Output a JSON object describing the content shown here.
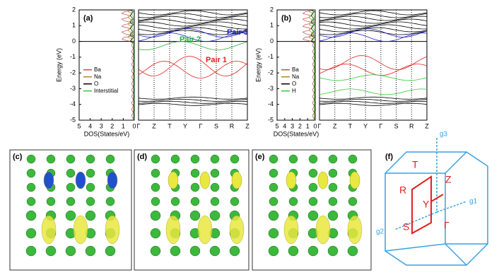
{
  "panels": [
    {
      "label": "(a)",
      "y_axis_label": "Energy (eV)",
      "yticks": [
        2,
        1,
        0,
        -1,
        -2,
        -3,
        -4,
        -5
      ],
      "ylim": [
        2,
        -5
      ],
      "x_axis_label": "DOS(States/eV)",
      "dos_ticks": [
        5,
        4,
        3,
        2,
        1,
        0
      ],
      "dos_lim": [
        5,
        0
      ],
      "kpoints": [
        "Γ",
        "Z",
        "T",
        "Y",
        "Γ",
        "S",
        "R",
        "Z"
      ],
      "legend": [
        {
          "name": "Ba",
          "color": "#c0504d"
        },
        {
          "name": "Na",
          "color": "#a8862a"
        },
        {
          "name": "O",
          "color": "#000000"
        },
        {
          "name": "Interstitial",
          "color": "#33cc33"
        }
      ],
      "annotations": [
        {
          "text": "Pair 1",
          "color": "#e02020"
        },
        {
          "text": "Pair 2",
          "color": "#20b040"
        },
        {
          "text": "Pair 3",
          "color": "#2020c0"
        }
      ]
    },
    {
      "label": "(b)",
      "y_axis_label": "Energy (eV)",
      "yticks": [
        2,
        1,
        0,
        -1,
        -2,
        -3,
        -4,
        -5
      ],
      "ylim": [
        2,
        -5
      ],
      "x_axis_label": "DOS(States/eV)",
      "dos_ticks": [
        5,
        4,
        3,
        2,
        1,
        0
      ],
      "dos_lim": [
        5,
        0
      ],
      "kpoints": [
        "Γ",
        "Z",
        "T",
        "Y",
        "Γ",
        "S",
        "R",
        "Z"
      ],
      "legend": [
        {
          "name": "Ba",
          "color": "#c0504d"
        },
        {
          "name": "Na",
          "color": "#a8862a"
        },
        {
          "name": "O",
          "color": "#000000"
        },
        {
          "name": "H",
          "color": "#33cc33"
        }
      ],
      "annotations": []
    }
  ],
  "structures": [
    {
      "label": "(c)"
    },
    {
      "label": "(d)"
    },
    {
      "label": "(e)"
    }
  ],
  "brillouin_zone": {
    "label": "(f)",
    "points": [
      "T",
      "Z",
      "R",
      "Y",
      "S",
      "Γ"
    ],
    "axes": [
      "g3",
      "g1",
      "g2"
    ]
  }
}
